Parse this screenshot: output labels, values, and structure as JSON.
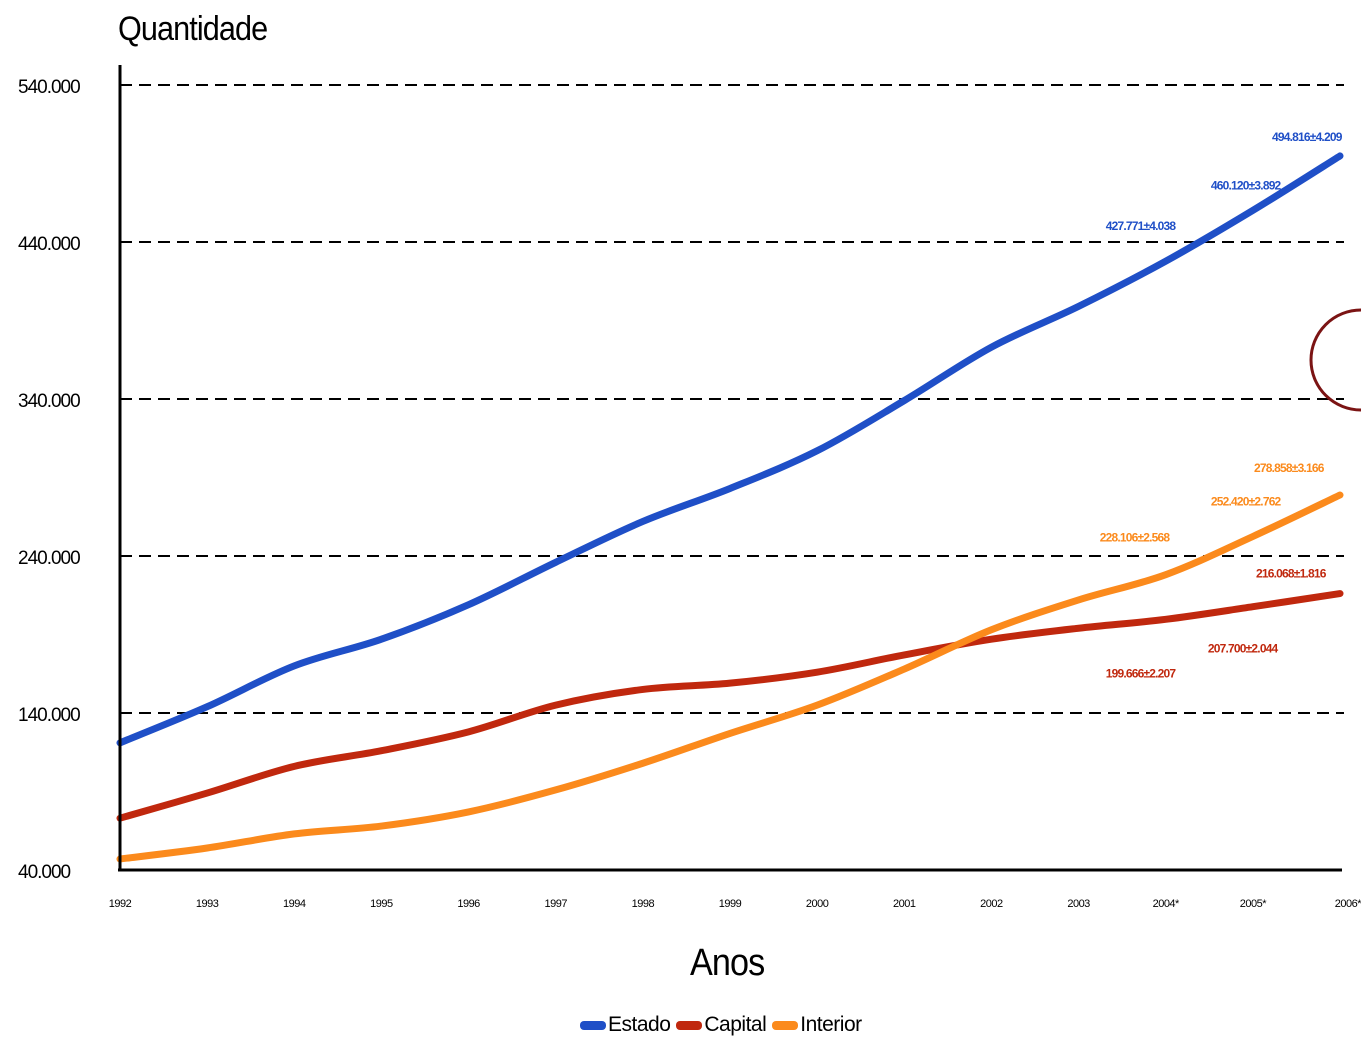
{
  "chart_data": {
    "type": "line",
    "ylabel": "Quantidade",
    "xlabel": "Anos",
    "ylim": [
      40000,
      540000
    ],
    "yticks": [
      40000,
      140000,
      240000,
      340000,
      440000,
      540000
    ],
    "ytick_labels": [
      "40.000",
      "140.000",
      "240.000",
      "340.000",
      "440.000",
      "540.000"
    ],
    "categories": [
      "1992",
      "1993",
      "1994",
      "1995",
      "1996",
      "1997",
      "1998",
      "1999",
      "2000",
      "2001",
      "2002",
      "2003",
      "2004*",
      "2005*",
      "2006*"
    ],
    "grid": "horizontal dashed",
    "legend_position": "bottom",
    "series": [
      {
        "name": "Estado",
        "color": "#1f4fc7",
        "values": [
          121000,
          144000,
          170000,
          187000,
          209000,
          236000,
          262000,
          283000,
          307000,
          339000,
          373000,
          399000,
          427771,
          460120,
          494816
        ]
      },
      {
        "name": "Capital",
        "color": "#c0280e",
        "values": [
          73000,
          89000,
          106000,
          116000,
          128000,
          145000,
          155000,
          159000,
          166000,
          177000,
          187000,
          194000,
          199666,
          207700,
          216068
        ]
      },
      {
        "name": "Interior",
        "color": "#fb8a1c",
        "values": [
          47000,
          54000,
          63000,
          68000,
          77000,
          91000,
          108000,
          127000,
          145000,
          168000,
          193000,
          212000,
          228106,
          252420,
          278858
        ]
      }
    ],
    "annotations": [
      {
        "series": "Estado",
        "label": "427.771±4.038",
        "category": "2004*"
      },
      {
        "series": "Estado",
        "label": "460.120±3.892",
        "category": "2005*"
      },
      {
        "series": "Estado",
        "label": "494.816±4.209",
        "category": "2006*"
      },
      {
        "series": "Interior",
        "label": "228.106±2.568",
        "category": "2004*"
      },
      {
        "series": "Interior",
        "label": "252.420±2.762",
        "category": "2005*"
      },
      {
        "series": "Interior",
        "label": "278.858±3.166",
        "category": "2006*"
      },
      {
        "series": "Capital",
        "label": "199.666±2.207",
        "category": "2004*"
      },
      {
        "series": "Capital",
        "label": "207.700±2.044",
        "category": "2005*"
      },
      {
        "series": "Capital",
        "label": "216.068±1.816",
        "category": "2006*"
      }
    ]
  }
}
